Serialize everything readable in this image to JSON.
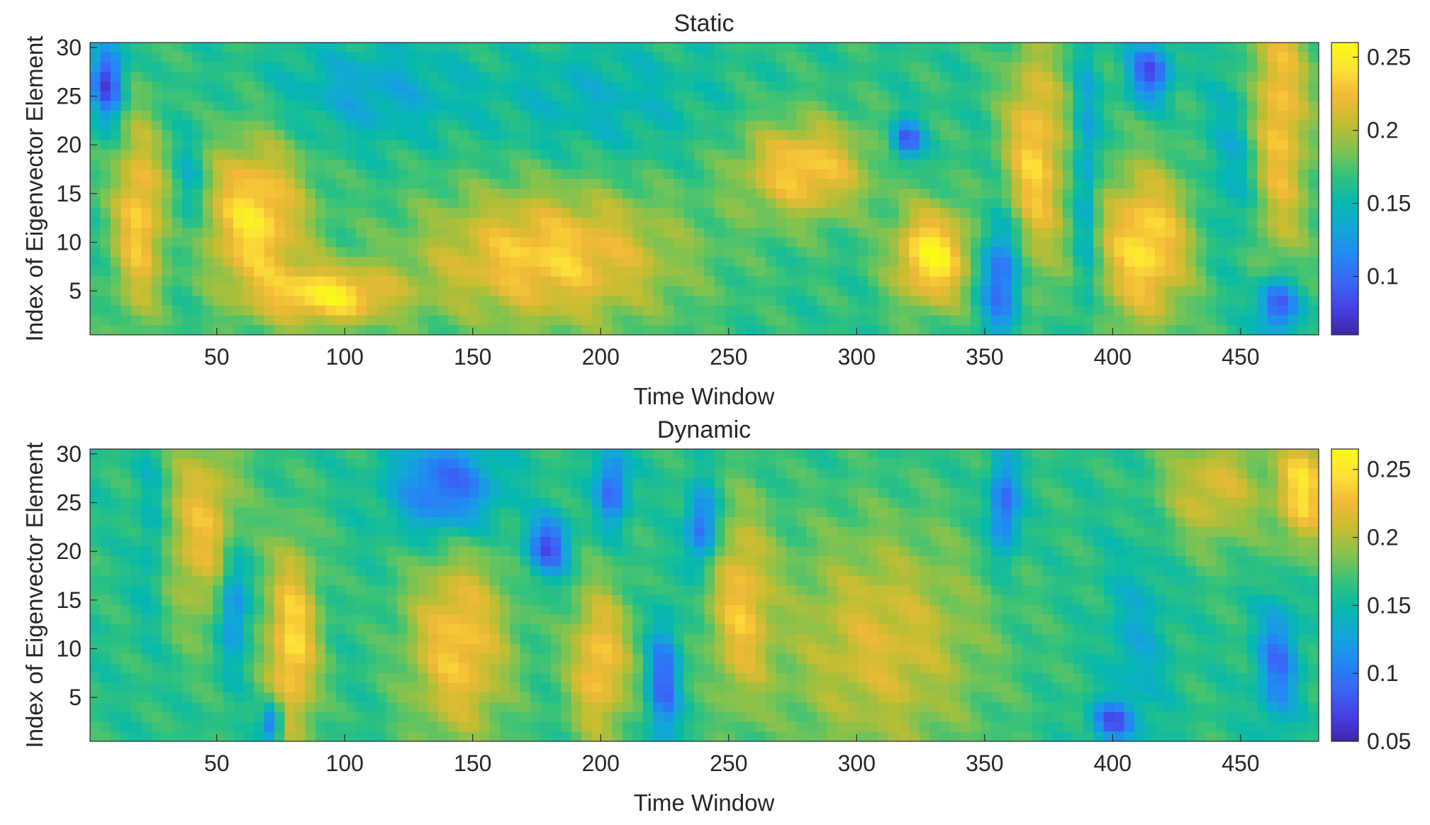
{
  "chart_data": [
    {
      "type": "heatmap",
      "title": "Static",
      "xlabel": "Time Window",
      "ylabel": "Index of Eigenvector Element",
      "x_range": [
        1,
        480
      ],
      "y_range": [
        1,
        30
      ],
      "x_ticks": [
        50,
        100,
        150,
        200,
        250,
        300,
        350,
        400,
        450
      ],
      "y_ticks": [
        5,
        10,
        15,
        20,
        25,
        30
      ],
      "colorbar": {
        "min": 0.06,
        "max": 0.26,
        "ticks": [
          0.1,
          0.15,
          0.2,
          0.25
        ],
        "tick_labels": [
          "0.1",
          "0.15",
          "0.2",
          "0.25"
        ]
      },
      "colormap": [
        "#3e26a8",
        "#4640e6",
        "#3a67f7",
        "#2188f3",
        "#13a6d8",
        "#06b9ad",
        "#33c27b",
        "#82c34f",
        "#c5bd31",
        "#f1b937",
        "#fde137",
        "#f9fb15"
      ],
      "grid_resolution": {
        "columns": 120,
        "rows": 30
      },
      "value_features": [
        {
          "t": 8,
          "e": 26,
          "v": 0.07,
          "w": 6,
          "h": 4
        },
        {
          "t": 20,
          "e": 12,
          "v": 0.23,
          "w": 10,
          "h": 10
        },
        {
          "t": 40,
          "e": 15,
          "v": 0.13,
          "w": 6,
          "h": 6
        },
        {
          "t": 65,
          "e": 12,
          "v": 0.24,
          "w": 20,
          "h": 8
        },
        {
          "t": 95,
          "e": 4,
          "v": 0.24,
          "w": 25,
          "h": 3
        },
        {
          "t": 110,
          "e": 25,
          "v": 0.13,
          "w": 35,
          "h": 5
        },
        {
          "t": 180,
          "e": 8,
          "v": 0.23,
          "w": 50,
          "h": 7
        },
        {
          "t": 200,
          "e": 24,
          "v": 0.14,
          "w": 40,
          "h": 6
        },
        {
          "t": 280,
          "e": 17,
          "v": 0.23,
          "w": 25,
          "h": 5
        },
        {
          "t": 320,
          "e": 20,
          "v": 0.08,
          "w": 6,
          "h": 2
        },
        {
          "t": 330,
          "e": 8,
          "v": 0.25,
          "w": 15,
          "h": 5
        },
        {
          "t": 357,
          "e": 6,
          "v": 0.08,
          "w": 8,
          "h": 6
        },
        {
          "t": 370,
          "e": 18,
          "v": 0.23,
          "w": 12,
          "h": 12
        },
        {
          "t": 390,
          "e": 16,
          "v": 0.12,
          "w": 5,
          "h": 15
        },
        {
          "t": 415,
          "e": 27,
          "v": 0.08,
          "w": 8,
          "h": 3
        },
        {
          "t": 413,
          "e": 9,
          "v": 0.24,
          "w": 18,
          "h": 8
        },
        {
          "t": 450,
          "e": 18,
          "v": 0.13,
          "w": 12,
          "h": 10
        },
        {
          "t": 465,
          "e": 3,
          "v": 0.07,
          "w": 8,
          "h": 3
        },
        {
          "t": 465,
          "e": 22,
          "v": 0.23,
          "w": 12,
          "h": 15
        }
      ]
    },
    {
      "type": "heatmap",
      "title": "Dynamic",
      "xlabel": "Time Window",
      "ylabel": "Index of Eigenvector Element",
      "x_range": [
        1,
        480
      ],
      "y_range": [
        1,
        30
      ],
      "x_ticks": [
        50,
        100,
        150,
        200,
        250,
        300,
        350,
        400,
        450
      ],
      "y_ticks": [
        5,
        10,
        15,
        20,
        25,
        30
      ],
      "colorbar": {
        "min": 0.05,
        "max": 0.265,
        "ticks": [
          0.05,
          0.1,
          0.15,
          0.2,
          0.25
        ],
        "tick_labels": [
          "0.05",
          "0.1",
          "0.15",
          "0.2",
          "0.25"
        ]
      },
      "colormap": [
        "#3e26a8",
        "#4640e6",
        "#3a67f7",
        "#2188f3",
        "#13a6d8",
        "#06b9ad",
        "#33c27b",
        "#82c34f",
        "#c5bd31",
        "#f1b937",
        "#fde137",
        "#f9fb15"
      ],
      "grid_resolution": {
        "columns": 120,
        "rows": 30
      },
      "value_features": [
        {
          "t": 25,
          "e": 22,
          "v": 0.13,
          "w": 6,
          "h": 10
        },
        {
          "t": 45,
          "e": 22,
          "v": 0.22,
          "w": 15,
          "h": 10
        },
        {
          "t": 57,
          "e": 14,
          "v": 0.09,
          "w": 6,
          "h": 6
        },
        {
          "t": 80,
          "e": 10,
          "v": 0.24,
          "w": 10,
          "h": 10
        },
        {
          "t": 72,
          "e": 2,
          "v": 0.07,
          "w": 4,
          "h": 2
        },
        {
          "t": 140,
          "e": 26,
          "v": 0.08,
          "w": 20,
          "h": 5
        },
        {
          "t": 145,
          "e": 10,
          "v": 0.23,
          "w": 20,
          "h": 10
        },
        {
          "t": 180,
          "e": 20,
          "v": 0.07,
          "w": 8,
          "h": 3
        },
        {
          "t": 205,
          "e": 26,
          "v": 0.08,
          "w": 6,
          "h": 4
        },
        {
          "t": 200,
          "e": 8,
          "v": 0.23,
          "w": 12,
          "h": 8
        },
        {
          "t": 225,
          "e": 6,
          "v": 0.08,
          "w": 6,
          "h": 6
        },
        {
          "t": 240,
          "e": 22,
          "v": 0.08,
          "w": 6,
          "h": 4
        },
        {
          "t": 255,
          "e": 14,
          "v": 0.22,
          "w": 12,
          "h": 10
        },
        {
          "t": 310,
          "e": 10,
          "v": 0.21,
          "w": 40,
          "h": 12
        },
        {
          "t": 358,
          "e": 24,
          "v": 0.08,
          "w": 6,
          "h": 5
        },
        {
          "t": 400,
          "e": 2,
          "v": 0.08,
          "w": 8,
          "h": 2
        },
        {
          "t": 410,
          "e": 10,
          "v": 0.13,
          "w": 12,
          "h": 10
        },
        {
          "t": 440,
          "e": 26,
          "v": 0.21,
          "w": 20,
          "h": 6
        },
        {
          "t": 465,
          "e": 8,
          "v": 0.09,
          "w": 8,
          "h": 6
        },
        {
          "t": 475,
          "e": 26,
          "v": 0.24,
          "w": 10,
          "h": 6
        }
      ]
    }
  ]
}
